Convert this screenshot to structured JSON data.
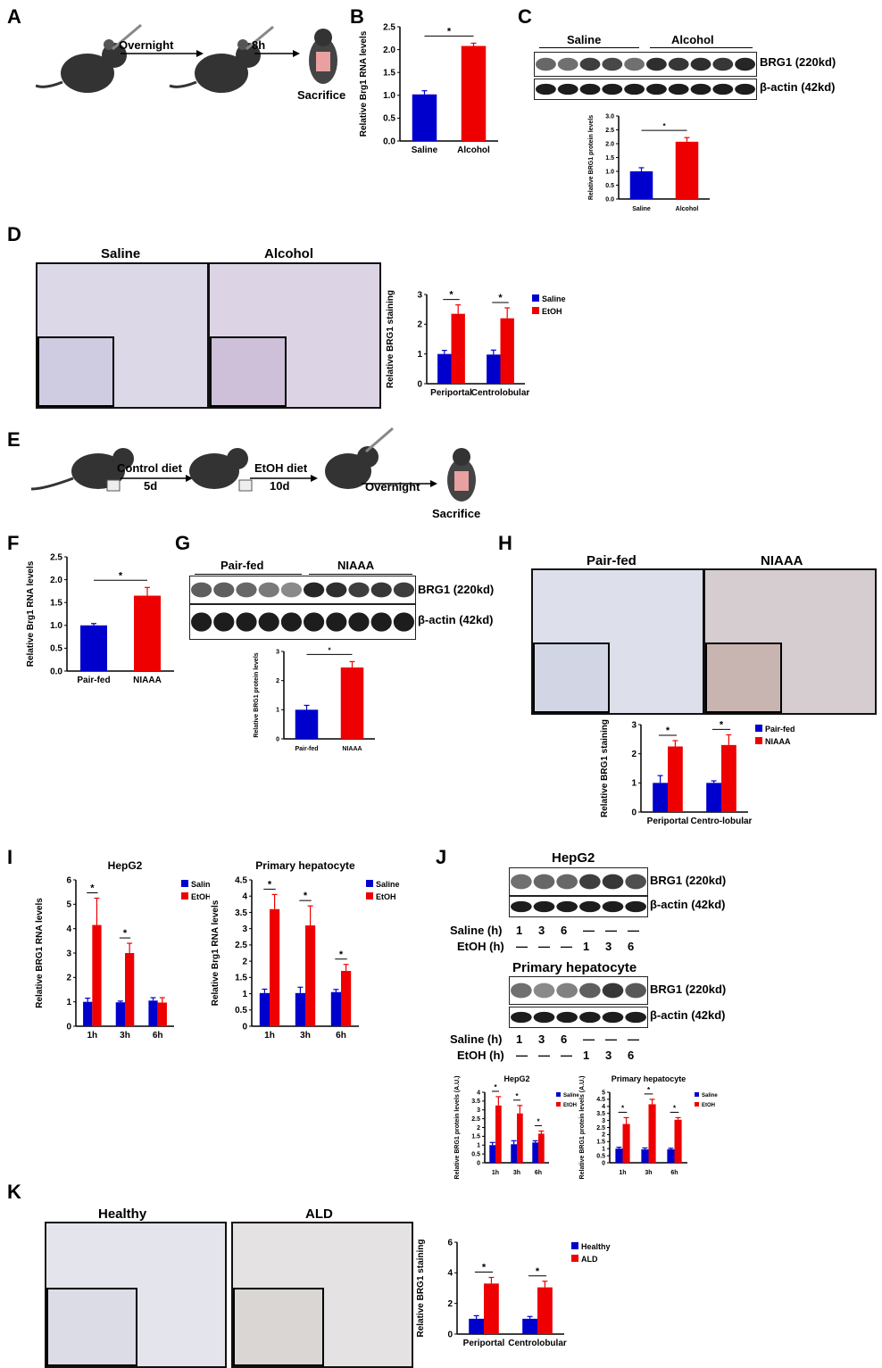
{
  "panels": {
    "A": {
      "letter": "A",
      "step1": "Overnight",
      "step2": "8h",
      "step3": "Sacrifice"
    },
    "B": {
      "letter": "B"
    },
    "C": {
      "letter": "C",
      "group1": "Saline",
      "group2": "Alcohol",
      "band1": "BRG1 (220kd)",
      "band2": "β-actin (42kd)"
    },
    "D": {
      "letter": "D",
      "img1": "Saline",
      "img2": "Alcohol"
    },
    "E": {
      "letter": "E",
      "step1": "Control diet",
      "step1b": "5d",
      "step2": "EtOH diet",
      "step2b": "10d",
      "step3": "Overnight",
      "step4": "Sacrifice"
    },
    "F": {
      "letter": "F"
    },
    "G": {
      "letter": "G",
      "group1": "Pair-fed",
      "group2": "NIAAA",
      "band1": "BRG1 (220kd)",
      "band2": "β-actin (42kd)"
    },
    "H": {
      "letter": "H",
      "img1": "Pair-fed",
      "img2": "NIAAA"
    },
    "I": {
      "letter": "I"
    },
    "J": {
      "letter": "J",
      "blot1_title": "HepG2",
      "blot2_title": "Primary hepatocyte",
      "band1": "BRG1 (220kd)",
      "band2": "β-actin (42kd)",
      "saline_label": "Saline (h)",
      "etoh_label": "EtOH (h)",
      "saline_row": [
        "1",
        "3",
        "6",
        "—",
        "—",
        "—"
      ],
      "etoh_row": [
        "—",
        "—",
        "—",
        "1",
        "3",
        "6"
      ]
    },
    "K": {
      "letter": "K",
      "img1": "Healthy",
      "img2": "ALD"
    }
  },
  "chart_data": [
    {
      "id": "B",
      "type": "bar",
      "categories": [
        "Saline",
        "Alcohol"
      ],
      "values": [
        1.02,
        2.08
      ],
      "errors": [
        0.08,
        0.06
      ],
      "colors": [
        "#0000cc",
        "#ee0000"
      ],
      "ylabel": "Relative Brg1 RNA levels",
      "ylim": [
        0,
        2.5
      ],
      "yticks": [
        "0.0",
        "0.5",
        "1.0",
        "1.5",
        "2.0",
        "2.5"
      ],
      "sig": "*"
    },
    {
      "id": "C",
      "type": "bar",
      "categories": [
        "Saline",
        "Alcohol"
      ],
      "values": [
        1.0,
        2.07
      ],
      "errors": [
        0.13,
        0.15
      ],
      "colors": [
        "#0000cc",
        "#ee0000"
      ],
      "ylabel": "Relative BRG1 protein levels",
      "ylim": [
        0,
        3.0
      ],
      "yticks": [
        "0.0",
        "0.5",
        "1.0",
        "1.5",
        "2.0",
        "2.5",
        "3.0"
      ],
      "sig": "*"
    },
    {
      "id": "D",
      "type": "bar",
      "categories": [
        "Periportal",
        "Centrolobular"
      ],
      "series": [
        {
          "name": "Saline",
          "values": [
            1.0,
            0.98
          ],
          "errors": [
            0.12,
            0.15
          ]
        },
        {
          "name": "EtOH",
          "values": [
            2.35,
            2.2
          ],
          "errors": [
            0.3,
            0.35
          ]
        }
      ],
      "colors": [
        "#0000cc",
        "#ee0000"
      ],
      "ylabel": "Relative BRG1 staining",
      "ylim": [
        0,
        3
      ],
      "yticks": [
        "0",
        "1",
        "2",
        "3"
      ],
      "sig": "*"
    },
    {
      "id": "F",
      "type": "bar",
      "categories": [
        "Pair-fed",
        "NIAAA"
      ],
      "values": [
        1.0,
        1.65
      ],
      "errors": [
        0.04,
        0.18
      ],
      "colors": [
        "#0000cc",
        "#ee0000"
      ],
      "ylabel": "Relative Brg1 RNA levels",
      "ylim": [
        0,
        2.5
      ],
      "yticks": [
        "0.0",
        "0.5",
        "1.0",
        "1.5",
        "2.0",
        "2.5"
      ],
      "sig": "*"
    },
    {
      "id": "G",
      "type": "bar",
      "categories": [
        "Pair-fed",
        "NIAAA"
      ],
      "values": [
        1.0,
        2.45
      ],
      "errors": [
        0.15,
        0.2
      ],
      "colors": [
        "#0000cc",
        "#ee0000"
      ],
      "ylabel": "Relative BRG1 protein levels",
      "ylim": [
        0,
        3
      ],
      "yticks": [
        "0",
        "1",
        "2",
        "3"
      ],
      "sig": "*"
    },
    {
      "id": "H",
      "type": "bar",
      "categories": [
        "Periportal",
        "Centro-lobular"
      ],
      "series": [
        {
          "name": "Pair-fed",
          "values": [
            1.0,
            1.0
          ],
          "errors": [
            0.25,
            0.07
          ]
        },
        {
          "name": "NIAAA",
          "values": [
            2.25,
            2.3
          ],
          "errors": [
            0.2,
            0.35
          ]
        }
      ],
      "colors": [
        "#0000cc",
        "#ee0000"
      ],
      "ylabel": "Relative BRG1 staining",
      "ylim": [
        0,
        3
      ],
      "yticks": [
        "0",
        "1",
        "2",
        "3"
      ],
      "sig": "*"
    },
    {
      "id": "I1",
      "type": "bar",
      "title": "HepG2",
      "categories": [
        "1h",
        "3h",
        "6h"
      ],
      "series": [
        {
          "name": "Saline",
          "values": [
            1.0,
            0.98,
            1.05
          ],
          "errors": [
            0.15,
            0.05,
            0.12
          ]
        },
        {
          "name": "EtOH",
          "values": [
            4.15,
            3.0,
            0.97
          ],
          "errors": [
            1.1,
            0.4,
            0.2
          ]
        }
      ],
      "colors": [
        "#0000cc",
        "#ee0000"
      ],
      "ylabel": "Relative BRG1 RNA levels",
      "ylim": [
        0,
        6
      ],
      "yticks": [
        "0",
        "1",
        "2",
        "3",
        "4",
        "5",
        "6"
      ],
      "sig": [
        "*",
        "*",
        ""
      ]
    },
    {
      "id": "I2",
      "type": "bar",
      "title": "Primary hepatocyte",
      "categories": [
        "1h",
        "3h",
        "6h"
      ],
      "series": [
        {
          "name": "Saline",
          "values": [
            1.02,
            1.02,
            1.05
          ],
          "errors": [
            0.12,
            0.18,
            0.08
          ]
        },
        {
          "name": "EtOH",
          "values": [
            3.6,
            3.1,
            1.7
          ],
          "errors": [
            0.45,
            0.6,
            0.2
          ]
        }
      ],
      "colors": [
        "#0000cc",
        "#ee0000"
      ],
      "ylabel": "Relative Brg1 RNA levels",
      "ylim": [
        0,
        4.5
      ],
      "yticks": [
        "0",
        "0.5",
        "1",
        "1.5",
        "2",
        "2.5",
        "3",
        "3.5",
        "4",
        "4.5"
      ],
      "sig": [
        "*",
        "*",
        "*"
      ]
    },
    {
      "id": "J1",
      "type": "bar",
      "title": "HepG2",
      "categories": [
        "1h",
        "3h",
        "6h"
      ],
      "series": [
        {
          "name": "Saline",
          "values": [
            1.0,
            1.05,
            1.15
          ],
          "errors": [
            0.15,
            0.2,
            0.1
          ]
        },
        {
          "name": "EtOH",
          "values": [
            3.25,
            2.8,
            1.65
          ],
          "errors": [
            0.5,
            0.45,
            0.15
          ]
        }
      ],
      "colors": [
        "#0000cc",
        "#ee0000"
      ],
      "ylabel": "Relative BRG1 protein levels (A.U.)",
      "ylim": [
        0,
        4
      ],
      "yticks": [
        "0",
        "0.5",
        "1",
        "1.5",
        "2",
        "2.5",
        "3",
        "3.5",
        "4"
      ],
      "sig": [
        "*",
        "*",
        "*"
      ]
    },
    {
      "id": "J2",
      "type": "bar",
      "title": "Primary hepatocyte",
      "categories": [
        "1h",
        "3h",
        "6h"
      ],
      "series": [
        {
          "name": "Saline",
          "values": [
            1.0,
            0.95,
            0.95
          ],
          "errors": [
            0.1,
            0.1,
            0.08
          ]
        },
        {
          "name": "EtOH",
          "values": [
            2.75,
            4.15,
            3.05
          ],
          "errors": [
            0.45,
            0.35,
            0.15
          ]
        }
      ],
      "colors": [
        "#0000cc",
        "#ee0000"
      ],
      "ylabel": "Relative BRG1 protein levels (A.U.)",
      "ylim": [
        0,
        5
      ],
      "yticks": [
        "0",
        "0.5",
        "1",
        "1.5",
        "2",
        "2.5",
        "3",
        "3.5",
        "4",
        "4.5",
        "5"
      ],
      "sig": [
        "*",
        "*",
        "*"
      ]
    },
    {
      "id": "K",
      "type": "bar",
      "categories": [
        "Periportal",
        "Centrolobular"
      ],
      "series": [
        {
          "name": "Healthy",
          "values": [
            1.0,
            1.0
          ],
          "errors": [
            0.2,
            0.15
          ]
        },
        {
          "name": "ALD",
          "values": [
            3.3,
            3.05
          ],
          "errors": [
            0.4,
            0.4
          ]
        }
      ],
      "colors": [
        "#0000cc",
        "#ee0000"
      ],
      "ylabel": "Relative BRG1 staining",
      "ylim": [
        0,
        6
      ],
      "yticks": [
        "0",
        "2",
        "4",
        "6"
      ],
      "sig": "*"
    }
  ]
}
